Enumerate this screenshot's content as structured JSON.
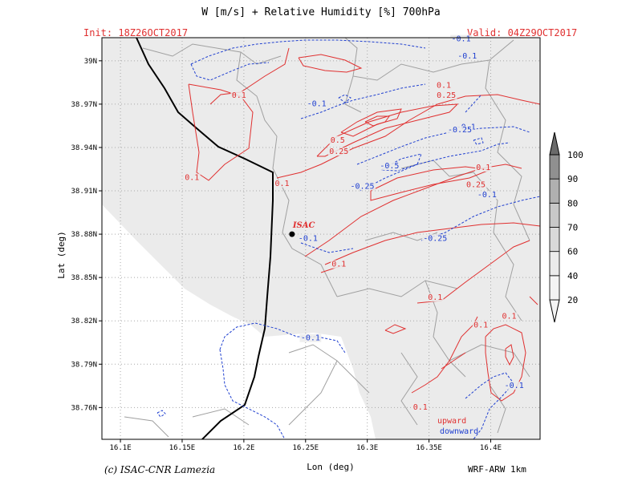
{
  "header": {
    "title": "W [m/s] + Relative Humidity [%] 700hPa",
    "init": "Init: 18Z26OCT2017",
    "valid": "Valid: 04Z29OCT2017"
  },
  "footer": {
    "credit": "(c) ISAC-CNR Lamezia",
    "model": "WRF-ARW 1km"
  },
  "colors": {
    "upward": "#e03030",
    "downward": "#2040d0",
    "humidity_fill": "#ebebeb",
    "coast": "#000000",
    "borders": "#a0a0a0"
  },
  "chart_data": {
    "type": "contour",
    "title": "W [m/s] + Relative Humidity [%] 700hPa",
    "xlabel": "Lon (deg)",
    "ylabel": "Lat (deg)",
    "xlim": [
      16.085,
      16.44
    ],
    "ylim": [
      38.738,
      39.016
    ],
    "xticks": [
      16.1,
      16.15,
      16.2,
      16.25,
      16.3,
      16.35,
      16.4
    ],
    "xtick_labels": [
      "16.1E",
      "16.15E",
      "16.2E",
      "16.25E",
      "16.3E",
      "16.35E",
      "16.4E"
    ],
    "yticks": [
      38.76,
      38.79,
      38.82,
      38.85,
      38.88,
      38.91,
      38.94,
      38.97,
      39.0
    ],
    "ytick_labels": [
      "38.76N",
      "38.79N",
      "38.82N",
      "38.85N",
      "38.88N",
      "38.91N",
      "38.94N",
      "38.97N",
      "39N"
    ],
    "grid": true,
    "colorbar": {
      "variable": "Relative Humidity [%]",
      "levels": [
        20,
        40,
        60,
        70,
        80,
        90,
        100
      ],
      "colors": [
        "#f4f4f4",
        "#ebebeb",
        "#d9d9d9",
        "#c8c8c8",
        "#b0b0b0",
        "#909090"
      ],
      "placement": "right"
    },
    "station": {
      "name": "ISAC",
      "lon": 16.239,
      "lat": 38.88
    },
    "contour_labels": [
      {
        "value": "0.1",
        "series": "upward",
        "lon": 16.196,
        "lat": 38.975
      },
      {
        "value": "0.1",
        "series": "upward",
        "lon": 16.158,
        "lat": 38.918
      },
      {
        "value": "0.1",
        "series": "upward",
        "lon": 16.231,
        "lat": 38.914
      },
      {
        "value": "0.1",
        "series": "upward",
        "lon": 16.362,
        "lat": 38.982
      },
      {
        "value": "0.25",
        "series": "upward",
        "lon": 16.364,
        "lat": 38.975
      },
      {
        "value": "0.5",
        "series": "upward",
        "lon": 16.276,
        "lat": 38.944
      },
      {
        "value": "0.25",
        "series": "upward",
        "lon": 16.277,
        "lat": 38.936
      },
      {
        "value": "0.1",
        "series": "upward",
        "lon": 16.394,
        "lat": 38.925
      },
      {
        "value": "0.25",
        "series": "upward",
        "lon": 16.388,
        "lat": 38.913
      },
      {
        "value": "0.1",
        "series": "upward",
        "lon": 16.277,
        "lat": 38.858
      },
      {
        "value": "0.1",
        "series": "upward",
        "lon": 16.355,
        "lat": 38.835
      },
      {
        "value": "0.1",
        "series": "upward",
        "lon": 16.392,
        "lat": 38.816
      },
      {
        "value": "0.1",
        "series": "upward",
        "lon": 16.415,
        "lat": 38.822
      },
      {
        "value": "0.1",
        "series": "upward",
        "lon": 16.343,
        "lat": 38.759
      },
      {
        "value": "-0.1",
        "series": "downward",
        "lon": 16.376,
        "lat": 39.014
      },
      {
        "value": "-0.1",
        "series": "downward",
        "lon": 16.381,
        "lat": 39.002
      },
      {
        "value": "-0.1",
        "series": "downward",
        "lon": 16.259,
        "lat": 38.969
      },
      {
        "value": "-0.1",
        "series": "downward",
        "lon": 16.38,
        "lat": 38.953
      },
      {
        "value": "-0.25",
        "series": "downward",
        "lon": 16.375,
        "lat": 38.951
      },
      {
        "value": "-0.5",
        "series": "downward",
        "lon": 16.318,
        "lat": 38.926
      },
      {
        "value": "-0.25",
        "series": "downward",
        "lon": 16.296,
        "lat": 38.912
      },
      {
        "value": "-0.1",
        "series": "downward",
        "lon": 16.397,
        "lat": 38.906
      },
      {
        "value": "-0.25",
        "series": "downward",
        "lon": 16.355,
        "lat": 38.876
      },
      {
        "value": "-0.1",
        "series": "downward",
        "lon": 16.252,
        "lat": 38.876
      },
      {
        "value": "-0.1",
        "series": "downward",
        "lon": 16.254,
        "lat": 38.807
      },
      {
        "value": "-0.1",
        "series": "downward",
        "lon": 16.419,
        "lat": 38.774
      }
    ],
    "legend": [
      {
        "label": "upward",
        "color": "#e03030"
      },
      {
        "label": "downward",
        "color": "#2040d0"
      }
    ]
  }
}
